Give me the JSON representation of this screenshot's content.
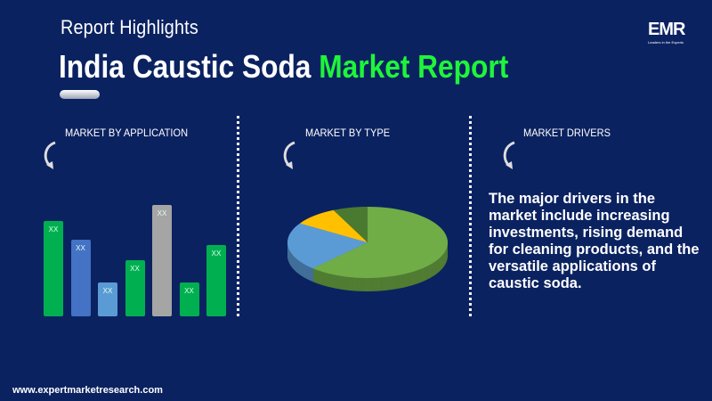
{
  "header": {
    "subtitle": "Report Highlights",
    "title_main": "India Caustic Soda",
    "title_accent": "Market Report",
    "logo": "EMR",
    "logo_tagline": "Leaders in the Experts"
  },
  "colors": {
    "background": "#0b2261",
    "accent": "#1ef53a"
  },
  "sections": [
    {
      "label": "MARKET BY APPLICATION",
      "icon": "curved-arrow-icon"
    },
    {
      "label": "MARKET BY  TYPE",
      "icon": "curved-arrow-icon"
    },
    {
      "label": "MARKET DRIVERS",
      "icon": "curved-arrow-icon"
    }
  ],
  "chart_data": [
    {
      "type": "bar",
      "categories": [
        "",
        "",
        "",
        "",
        "",
        "",
        ""
      ],
      "values": [
        107,
        86,
        38,
        63,
        125,
        38,
        80
      ],
      "data_labels": [
        "XX",
        "XX",
        "XX",
        "XX",
        "XX",
        "XX",
        "XX"
      ],
      "colors": [
        "#00b050",
        "#4472c4",
        "#5b9bd5",
        "#00b050",
        "#a5a5a5",
        "#00b050",
        "#00b050"
      ],
      "grid": false
    },
    {
      "type": "pie",
      "style": "3d",
      "values": [
        62,
        22,
        9,
        7
      ],
      "colors": [
        "#70ad47",
        "#5b9bd5",
        "#ffc000",
        "#4a7a2f"
      ]
    }
  ],
  "drivers_text": "The major drivers in the market include increasing investments, rising demand for cleaning products, and the versatile applications of caustic soda.",
  "footer": {
    "url": "www.expertmarketresearch.com"
  }
}
